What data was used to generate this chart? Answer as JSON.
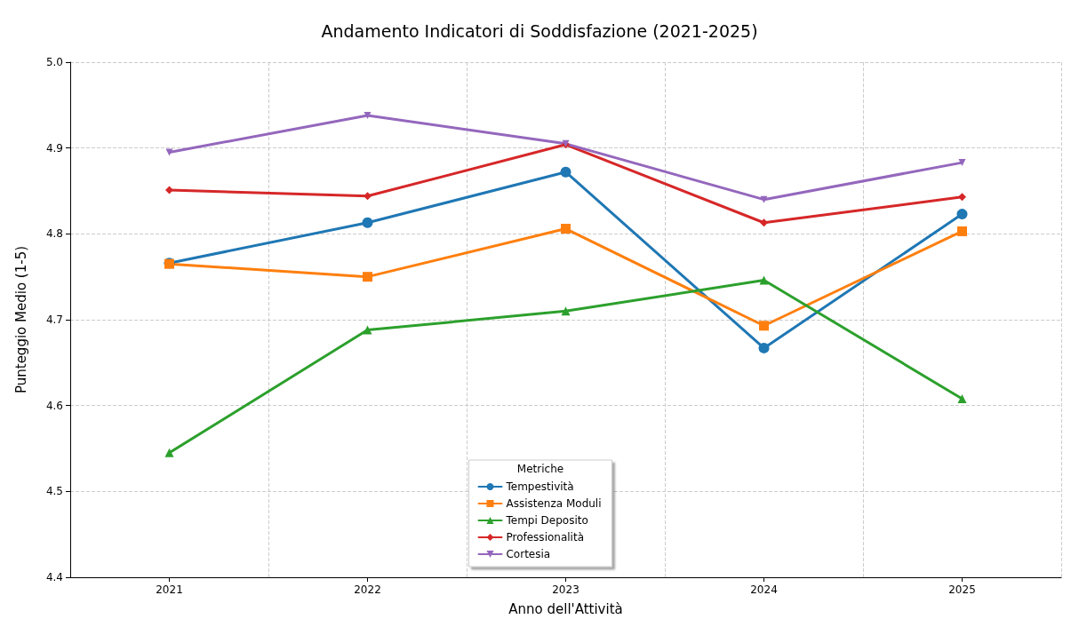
{
  "chart_data": {
    "type": "line",
    "title": "Andamento Indicatori di Soddisfazione (2021-2025)",
    "xlabel": "Anno dell'Attività",
    "ylabel": "Punteggio Medio (1-5)",
    "legend_title": "Metriche",
    "categories": [
      "2021",
      "2022",
      "2023",
      "2024",
      "2025"
    ],
    "series": [
      {
        "name": "Tempestività",
        "color": "#1f77b4",
        "marker": "circle",
        "values": [
          4.766,
          4.813,
          4.872,
          4.667,
          4.823
        ]
      },
      {
        "name": "Assistenza Moduli",
        "color": "#ff7f0e",
        "marker": "square",
        "values": [
          4.765,
          4.75,
          4.806,
          4.693,
          4.803
        ]
      },
      {
        "name": "Tempi Deposito",
        "color": "#2ca02c",
        "marker": "triangle",
        "values": [
          4.545,
          4.688,
          4.71,
          4.746,
          4.608
        ]
      },
      {
        "name": "Professionalità",
        "color": "#d62728",
        "marker": "diamond",
        "values": [
          4.851,
          4.844,
          4.904,
          4.813,
          4.843
        ]
      },
      {
        "name": "Cortesia",
        "color": "#9467bd",
        "marker": "triangle-down",
        "values": [
          4.895,
          4.938,
          4.905,
          4.84,
          4.883
        ]
      }
    ],
    "ylim": [
      4.4,
      5.0
    ],
    "yticks": [
      4.4,
      4.5,
      4.6,
      4.7,
      4.8,
      4.9,
      {
        "value": 5,
        "label": "5.0"
      }
    ],
    "grid": true,
    "legend": "bottom",
    "line_style": "solid"
  }
}
